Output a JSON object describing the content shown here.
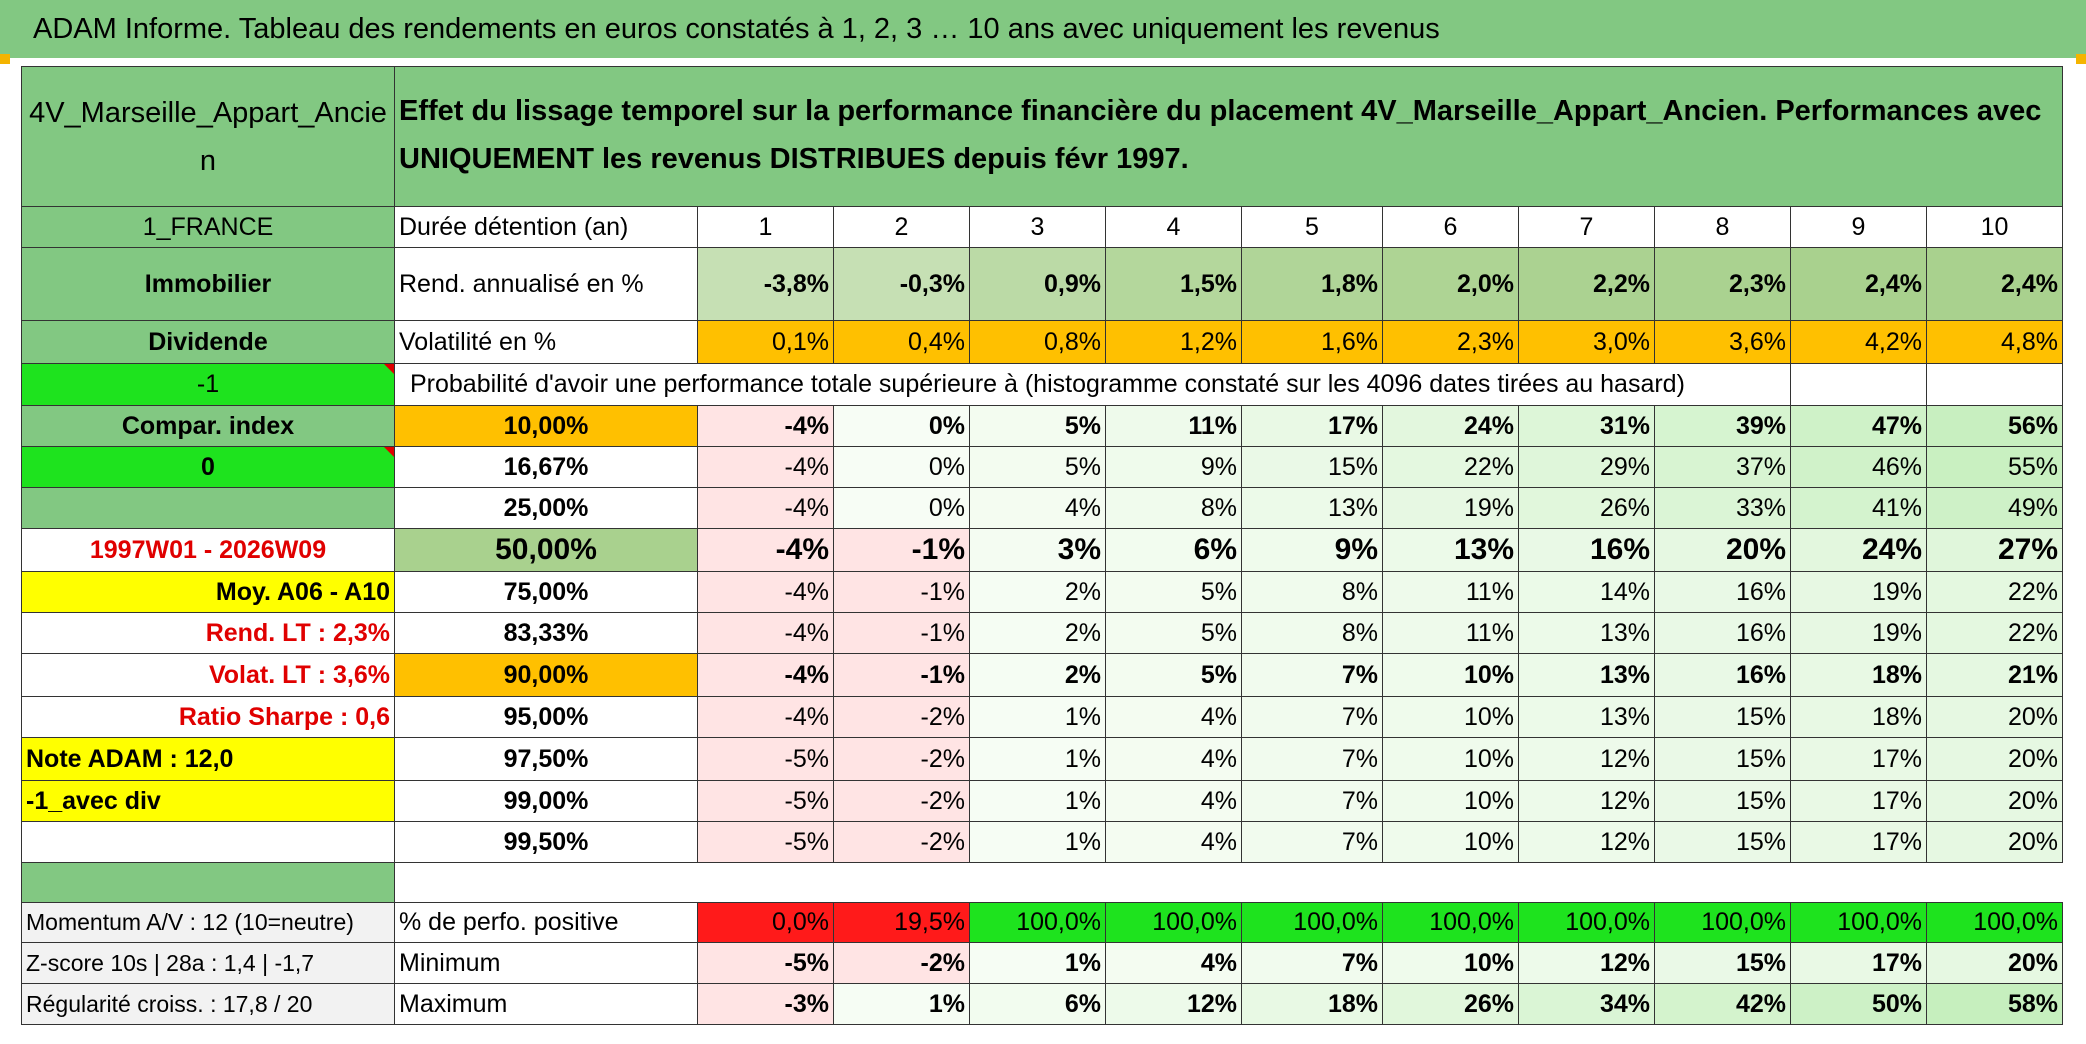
{
  "title": "ADAM Informe. Tableau des rendements en euros constatés à 1, 2, 3 … 10 ans avec uniquement les revenus",
  "header": {
    "fund_name": "4V_Marseille_Appart_Ancie n",
    "description": "Effet du lissage temporel sur la performance financière du placement 4V_Marseille_Appart_Ancien. Performances avec UNIQUEMENT les revenus DISTRIBUES depuis févr 1997."
  },
  "left_labels": {
    "country": "1_FRANCE",
    "category": "Immobilier",
    "type": "Dividende",
    "flag1": "-1",
    "compar": "Compar. index",
    "flag2": "0",
    "period": "1997W01 - 2026W09",
    "moy": "Moy. A06 - A10",
    "rend_lt": "Rend. LT :   2,3%",
    "volat_lt": "Volat. LT :   3,6%",
    "sharpe": "Ratio Sharpe :   0,6",
    "note": "Note ADAM : 12,0",
    "avec_div": "-1_avec div",
    "momentum": "Momentum A/V : 12 (10=neutre)",
    "zscore": "Z-score 10s | 28a : 1,4 | -1,7",
    "regularite": "Régularité croiss. : 17,8 / 20"
  },
  "row_labels": {
    "duree": "Durée détention (an)",
    "rend": "Rend. annualisé en %",
    "vol": "Volatilité en %",
    "proba": "Probabilité d'avoir une performance totale supérieure à (histogramme constaté sur les 4096 dates tirées au hasard)",
    "positive": "% de perfo. positive",
    "minimum": "Minimum",
    "maximum": "Maximum"
  },
  "years": [
    "1",
    "2",
    "3",
    "4",
    "5",
    "6",
    "7",
    "8",
    "9",
    "10"
  ],
  "rend": [
    "-3,8%",
    "-0,3%",
    "0,9%",
    "1,5%",
    "1,8%",
    "2,0%",
    "2,2%",
    "2,3%",
    "2,4%",
    "2,4%"
  ],
  "vol": [
    "0,1%",
    "0,4%",
    "0,8%",
    "1,2%",
    "1,6%",
    "2,3%",
    "3,0%",
    "3,6%",
    "4,2%",
    "4,8%"
  ],
  "percentiles": [
    {
      "p": "10,00%",
      "v": [
        "-4%",
        "0%",
        "5%",
        "11%",
        "17%",
        "24%",
        "31%",
        "39%",
        "47%",
        "56%"
      ]
    },
    {
      "p": "16,67%",
      "v": [
        "-4%",
        "0%",
        "5%",
        "9%",
        "15%",
        "22%",
        "29%",
        "37%",
        "46%",
        "55%"
      ]
    },
    {
      "p": "25,00%",
      "v": [
        "-4%",
        "0%",
        "4%",
        "8%",
        "13%",
        "19%",
        "26%",
        "33%",
        "41%",
        "49%"
      ]
    },
    {
      "p": "50,00%",
      "v": [
        "-4%",
        "-1%",
        "3%",
        "6%",
        "9%",
        "13%",
        "16%",
        "20%",
        "24%",
        "27%"
      ]
    },
    {
      "p": "75,00%",
      "v": [
        "-4%",
        "-1%",
        "2%",
        "5%",
        "8%",
        "11%",
        "14%",
        "16%",
        "19%",
        "22%"
      ]
    },
    {
      "p": "83,33%",
      "v": [
        "-4%",
        "-1%",
        "2%",
        "5%",
        "8%",
        "11%",
        "13%",
        "16%",
        "19%",
        "22%"
      ]
    },
    {
      "p": "90,00%",
      "v": [
        "-4%",
        "-1%",
        "2%",
        "5%",
        "7%",
        "10%",
        "13%",
        "16%",
        "18%",
        "21%"
      ]
    },
    {
      "p": "95,00%",
      "v": [
        "-4%",
        "-2%",
        "1%",
        "4%",
        "7%",
        "10%",
        "13%",
        "15%",
        "18%",
        "20%"
      ]
    },
    {
      "p": "97,50%",
      "v": [
        "-5%",
        "-2%",
        "1%",
        "4%",
        "7%",
        "10%",
        "12%",
        "15%",
        "17%",
        "20%"
      ]
    },
    {
      "p": "99,00%",
      "v": [
        "-5%",
        "-2%",
        "1%",
        "4%",
        "7%",
        "10%",
        "12%",
        "15%",
        "17%",
        "20%"
      ]
    },
    {
      "p": "99,50%",
      "v": [
        "-5%",
        "-2%",
        "1%",
        "4%",
        "7%",
        "10%",
        "12%",
        "15%",
        "17%",
        "20%"
      ]
    }
  ],
  "positive": [
    "0,0%",
    "19,5%",
    "100,0%",
    "100,0%",
    "100,0%",
    "100,0%",
    "100,0%",
    "100,0%",
    "100,0%",
    "100,0%"
  ],
  "minimum": [
    "-5%",
    "-2%",
    "1%",
    "4%",
    "7%",
    "10%",
    "12%",
    "15%",
    "17%",
    "20%"
  ],
  "maximum": [
    "-3%",
    "1%",
    "6%",
    "12%",
    "18%",
    "26%",
    "34%",
    "42%",
    "50%",
    "58%"
  ],
  "colors": {
    "header_green": "#82c882",
    "bright_green": "#1ee31e",
    "orange": "#ffc000",
    "yellow": "#ffff00",
    "negative_pink": "#ffe4e4",
    "positive_red": "#ff1a1a",
    "label_red": "#e00000"
  }
}
